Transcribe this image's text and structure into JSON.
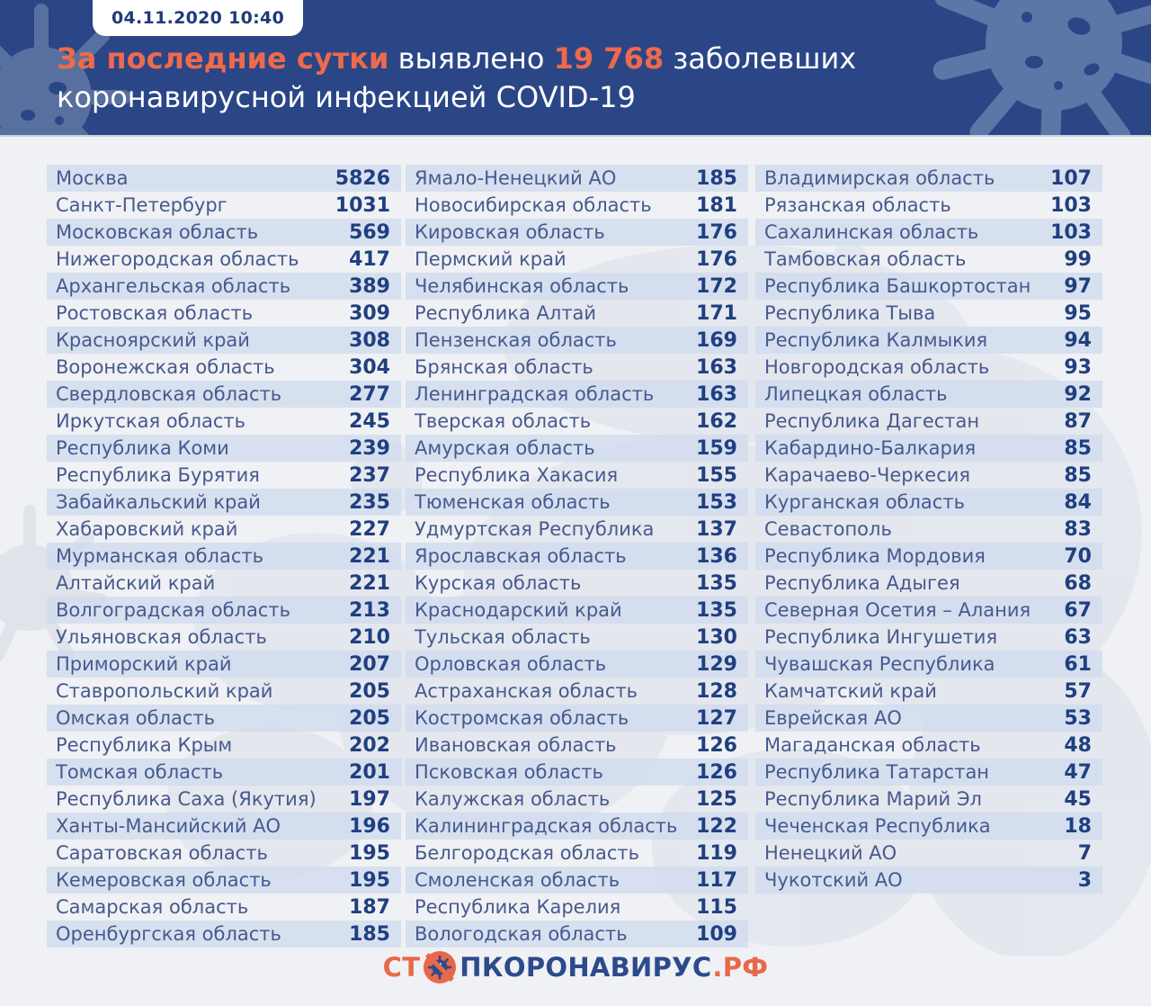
{
  "header": {
    "badge": "04.11.2020 10:40",
    "title": {
      "highlight": "За последние сутки",
      "middle": "выявлено",
      "count": "19 768",
      "tail": "заболевших",
      "line2": "коронавирусной инфекцией COVID-19"
    }
  },
  "colors": {
    "header_bg": "#2b4687",
    "accent_orange": "#ee6a4c",
    "page_bg": "#f0f1f4",
    "row_stripe": "#dde5f1",
    "region_text": "#47598e",
    "value_text": "#1f3f80",
    "decor_splat": "#5d76a8",
    "map_silhouette": "#dde2eb"
  },
  "icons": {
    "logo_icon": "virus-ban-icon",
    "header_decor": "virus-splat-icon"
  },
  "chart_data": {
    "type": "table",
    "title": "За последние сутки выявлено 19 768 заболевших коронавирусной инфекцией COVID-19",
    "timestamp": "04.11.2020 10:40",
    "total_new_cases": 19768,
    "columns": [
      {
        "rows": [
          {
            "region": "Москва",
            "value": 5826
          },
          {
            "region": "Санкт-Петербург",
            "value": 1031
          },
          {
            "region": "Московская область",
            "value": 569
          },
          {
            "region": "Нижегородская область",
            "value": 417
          },
          {
            "region": "Архангельская область",
            "value": 389
          },
          {
            "region": "Ростовская область",
            "value": 309
          },
          {
            "region": "Красноярский край",
            "value": 308
          },
          {
            "region": "Воронежская область",
            "value": 304
          },
          {
            "region": "Свердловская область",
            "value": 277
          },
          {
            "region": "Иркутская область",
            "value": 245
          },
          {
            "region": "Республика Коми",
            "value": 239
          },
          {
            "region": "Республика Бурятия",
            "value": 237
          },
          {
            "region": "Забайкальский край",
            "value": 235
          },
          {
            "region": "Хабаровский край",
            "value": 227
          },
          {
            "region": "Мурманская область",
            "value": 221
          },
          {
            "region": "Алтайский край",
            "value": 221
          },
          {
            "region": "Волгоградская область",
            "value": 213
          },
          {
            "region": "Ульяновская область",
            "value": 210
          },
          {
            "region": "Приморский край",
            "value": 207
          },
          {
            "region": "Ставропольский край",
            "value": 205
          },
          {
            "region": "Омская область",
            "value": 205
          },
          {
            "region": "Республика Крым",
            "value": 202
          },
          {
            "region": "Томская область",
            "value": 201
          },
          {
            "region": "Республика Саха (Якутия)",
            "value": 197
          },
          {
            "region": "Ханты-Мансийский АО",
            "value": 196
          },
          {
            "region": "Саратовская область",
            "value": 195
          },
          {
            "region": "Кемеровская область",
            "value": 195
          },
          {
            "region": "Самарская область",
            "value": 187
          },
          {
            "region": "Оренбургская область",
            "value": 185
          }
        ]
      },
      {
        "rows": [
          {
            "region": "Ямало-Ненецкий АО",
            "value": 185
          },
          {
            "region": "Новосибирская область",
            "value": 181
          },
          {
            "region": "Кировская область",
            "value": 176
          },
          {
            "region": "Пермский край",
            "value": 176
          },
          {
            "region": "Челябинская область",
            "value": 172
          },
          {
            "region": "Республика Алтай",
            "value": 171
          },
          {
            "region": "Пензенская область",
            "value": 169
          },
          {
            "region": "Брянская область",
            "value": 163
          },
          {
            "region": "Ленинградская область",
            "value": 163
          },
          {
            "region": "Тверская область",
            "value": 162
          },
          {
            "region": "Амурская область",
            "value": 159
          },
          {
            "region": "Республика Хакасия",
            "value": 155
          },
          {
            "region": "Тюменская область",
            "value": 153
          },
          {
            "region": "Удмуртская Республика",
            "value": 137
          },
          {
            "region": "Ярославская область",
            "value": 136
          },
          {
            "region": "Курская область",
            "value": 135
          },
          {
            "region": "Краснодарский край",
            "value": 135
          },
          {
            "region": "Тульская область",
            "value": 130
          },
          {
            "region": "Орловская область",
            "value": 129
          },
          {
            "region": "Астраханская область",
            "value": 128
          },
          {
            "region": "Костромская область",
            "value": 127
          },
          {
            "region": "Ивановская область",
            "value": 126
          },
          {
            "region": "Псковская область",
            "value": 126
          },
          {
            "region": "Калужская область",
            "value": 125
          },
          {
            "region": "Калининградская область",
            "value": 122
          },
          {
            "region": "Белгородская область",
            "value": 119
          },
          {
            "region": "Смоленская область",
            "value": 117
          },
          {
            "region": "Республика Карелия",
            "value": 115
          },
          {
            "region": "Вологодская область",
            "value": 109
          }
        ]
      },
      {
        "rows": [
          {
            "region": "Владимирская область",
            "value": 107
          },
          {
            "region": "Рязанская область",
            "value": 103
          },
          {
            "region": "Сахалинская область",
            "value": 103
          },
          {
            "region": "Тамбовская область",
            "value": 99
          },
          {
            "region": "Республика Башкортостан",
            "value": 97
          },
          {
            "region": "Республика Тыва",
            "value": 95
          },
          {
            "region": "Республика Калмыкия",
            "value": 94
          },
          {
            "region": "Новгородская область",
            "value": 93
          },
          {
            "region": "Липецкая область",
            "value": 92
          },
          {
            "region": "Республика Дагестан",
            "value": 87
          },
          {
            "region": "Кабардино-Балкария",
            "value": 85
          },
          {
            "region": "Карачаево-Черкесия",
            "value": 85
          },
          {
            "region": "Курганская область",
            "value": 84
          },
          {
            "region": "Севастополь",
            "value": 83
          },
          {
            "region": "Республика Мордовия",
            "value": 70
          },
          {
            "region": "Республика Адыгея",
            "value": 68
          },
          {
            "region": "Северная Осетия – Алания",
            "value": 67
          },
          {
            "region": "Республика Ингушетия",
            "value": 63
          },
          {
            "region": "Чувашская Республика",
            "value": 61
          },
          {
            "region": "Камчатский край",
            "value": 57
          },
          {
            "region": "Еврейская АО",
            "value": 53
          },
          {
            "region": "Магаданская область",
            "value": 48
          },
          {
            "region": "Республика Татарстан",
            "value": 47
          },
          {
            "region": "Республика Марий Эл",
            "value": 45
          },
          {
            "region": "Чеченская Республика",
            "value": 18
          },
          {
            "region": "Ненецкий АО",
            "value": 7
          },
          {
            "region": "Чукотский АО",
            "value": 3
          }
        ]
      }
    ]
  },
  "footer": {
    "logo": {
      "prefix": "СТ",
      "middle": "ПКОРОНАВИРУС",
      "suffix": ".РФ"
    }
  }
}
